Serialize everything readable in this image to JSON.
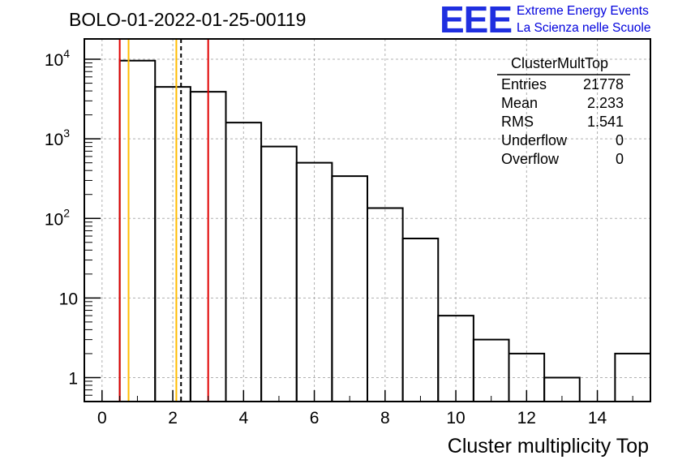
{
  "title": "BOLO-01-2022-01-25-00119",
  "logo": {
    "mark": "EEE",
    "line1": "Extreme Energy Events",
    "line2": "La Scienza nelle Scuole",
    "color": "#1f2fe0"
  },
  "stats": {
    "name": "ClusterMultTop",
    "rows": [
      {
        "label": "Entries",
        "value": "21778"
      },
      {
        "label": "Mean",
        "value": "2.233"
      },
      {
        "label": "RMS",
        "value": "1.541"
      },
      {
        "label": "Underflow",
        "value": "0"
      },
      {
        "label": "Overflow",
        "value": "0"
      }
    ]
  },
  "chart_data": {
    "type": "histogram",
    "xlabel": "Cluster multiplicity Top",
    "ylabel": "",
    "xlim": [
      -0.5,
      15.5
    ],
    "ylim": [
      0.5,
      18000
    ],
    "yscale": "log",
    "grid": true,
    "xticks": [
      0,
      2,
      4,
      6,
      8,
      10,
      12,
      14
    ],
    "yticks": [
      {
        "value": 1,
        "base": "1",
        "exp": ""
      },
      {
        "value": 10,
        "base": "10",
        "exp": ""
      },
      {
        "value": 100,
        "base": "10",
        "exp": "2"
      },
      {
        "value": 1000,
        "base": "10",
        "exp": "3"
      },
      {
        "value": 10000,
        "base": "10",
        "exp": "4"
      }
    ],
    "bins": [
      {
        "low": 0.5,
        "high": 1.5,
        "count": 9600
      },
      {
        "low": 1.5,
        "high": 2.5,
        "count": 4500
      },
      {
        "low": 2.5,
        "high": 3.5,
        "count": 3900
      },
      {
        "low": 3.5,
        "high": 4.5,
        "count": 1600
      },
      {
        "low": 4.5,
        "high": 5.5,
        "count": 800
      },
      {
        "low": 5.5,
        "high": 6.5,
        "count": 500
      },
      {
        "low": 6.5,
        "high": 7.5,
        "count": 340
      },
      {
        "low": 7.5,
        "high": 8.5,
        "count": 135
      },
      {
        "low": 8.5,
        "high": 9.5,
        "count": 56
      },
      {
        "low": 9.5,
        "high": 10.5,
        "count": 6
      },
      {
        "low": 10.5,
        "high": 11.5,
        "count": 3
      },
      {
        "low": 11.5,
        "high": 12.5,
        "count": 2
      },
      {
        "low": 12.5,
        "high": 13.5,
        "count": 1
      },
      {
        "low": 13.5,
        "high": 14.5,
        "count": 0
      },
      {
        "low": 14.5,
        "high": 15.5,
        "count": 2
      }
    ],
    "markers": [
      {
        "x": 0.5,
        "color": "#e00000",
        "style": "solid"
      },
      {
        "x": 0.75,
        "color": "#ffbb00",
        "style": "solid"
      },
      {
        "x": 2.1,
        "color": "#ffbb00",
        "style": "solid"
      },
      {
        "x": 2.233,
        "color": "#000000",
        "style": "dashed"
      },
      {
        "x": 3.0,
        "color": "#e00000",
        "style": "solid"
      }
    ]
  }
}
